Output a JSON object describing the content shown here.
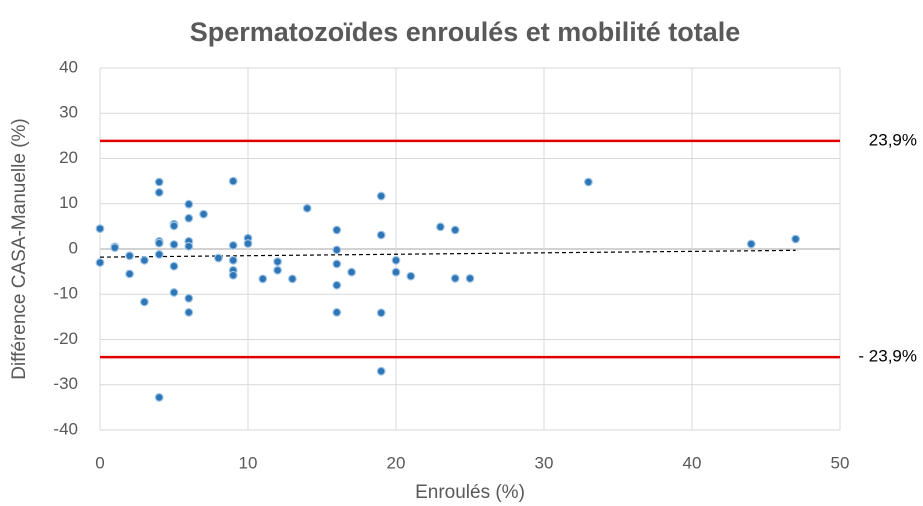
{
  "chart_data": {
    "type": "scatter",
    "title": "Spermatozoïdes enroulés et mobilité totale",
    "x_label": "Enroulés (%)",
    "y_label": "Différence CASA-Manuelle (%)",
    "xlim": [
      0,
      50
    ],
    "xticks": [
      0,
      10,
      20,
      30,
      40,
      50
    ],
    "ylim": [
      -40,
      40
    ],
    "yticks": [
      -40,
      -30,
      -20,
      -10,
      0,
      10,
      20,
      30,
      40
    ],
    "grid": true,
    "color": "#2e75b6",
    "series": [
      {
        "x": [
          0,
          0,
          1,
          1,
          2,
          2,
          3,
          3,
          4,
          4,
          4,
          4,
          4,
          4,
          5,
          5,
          5,
          5,
          5,
          6,
          6,
          6,
          6,
          6,
          6,
          7,
          8,
          9,
          9,
          9,
          9,
          9,
          10,
          10,
          11,
          12,
          12,
          13,
          14,
          16,
          16,
          16,
          16,
          16,
          17,
          19,
          19,
          19,
          19,
          20,
          20,
          21,
          23,
          24,
          24,
          25,
          33,
          44,
          47
        ],
        "y": [
          4.5,
          -3,
          0.5,
          0.3,
          -1.5,
          -5.5,
          -2.5,
          -11.7,
          14.8,
          12.5,
          1.7,
          1.3,
          -1.2,
          -32.8,
          5.5,
          5.1,
          1,
          -3.8,
          -9.6,
          9.9,
          6.8,
          1.7,
          0.6,
          -10.9,
          -14,
          7.7,
          -2,
          15,
          0.8,
          -2.5,
          -4.7,
          -5.8,
          2.4,
          1.2,
          -6.6,
          -2.8,
          -4.7,
          -6.6,
          9,
          4.2,
          -0.2,
          -3.3,
          -8,
          -14,
          -5.1,
          11.7,
          3.1,
          -14.1,
          -27,
          -2.5,
          -5.1,
          -6,
          4.9,
          4.2,
          -6.5,
          -6.5,
          14.8,
          1.1,
          2.2
        ]
      }
    ],
    "limit_lines": [
      {
        "value": 23.9,
        "label": "23,9%",
        "color": "#e00000"
      },
      {
        "value": -23.9,
        "label": "- 23,9%",
        "color": "#e00000"
      }
    ],
    "trend": {
      "x": [
        0,
        47
      ],
      "y": [
        -1.8,
        -0.3
      ]
    }
  }
}
